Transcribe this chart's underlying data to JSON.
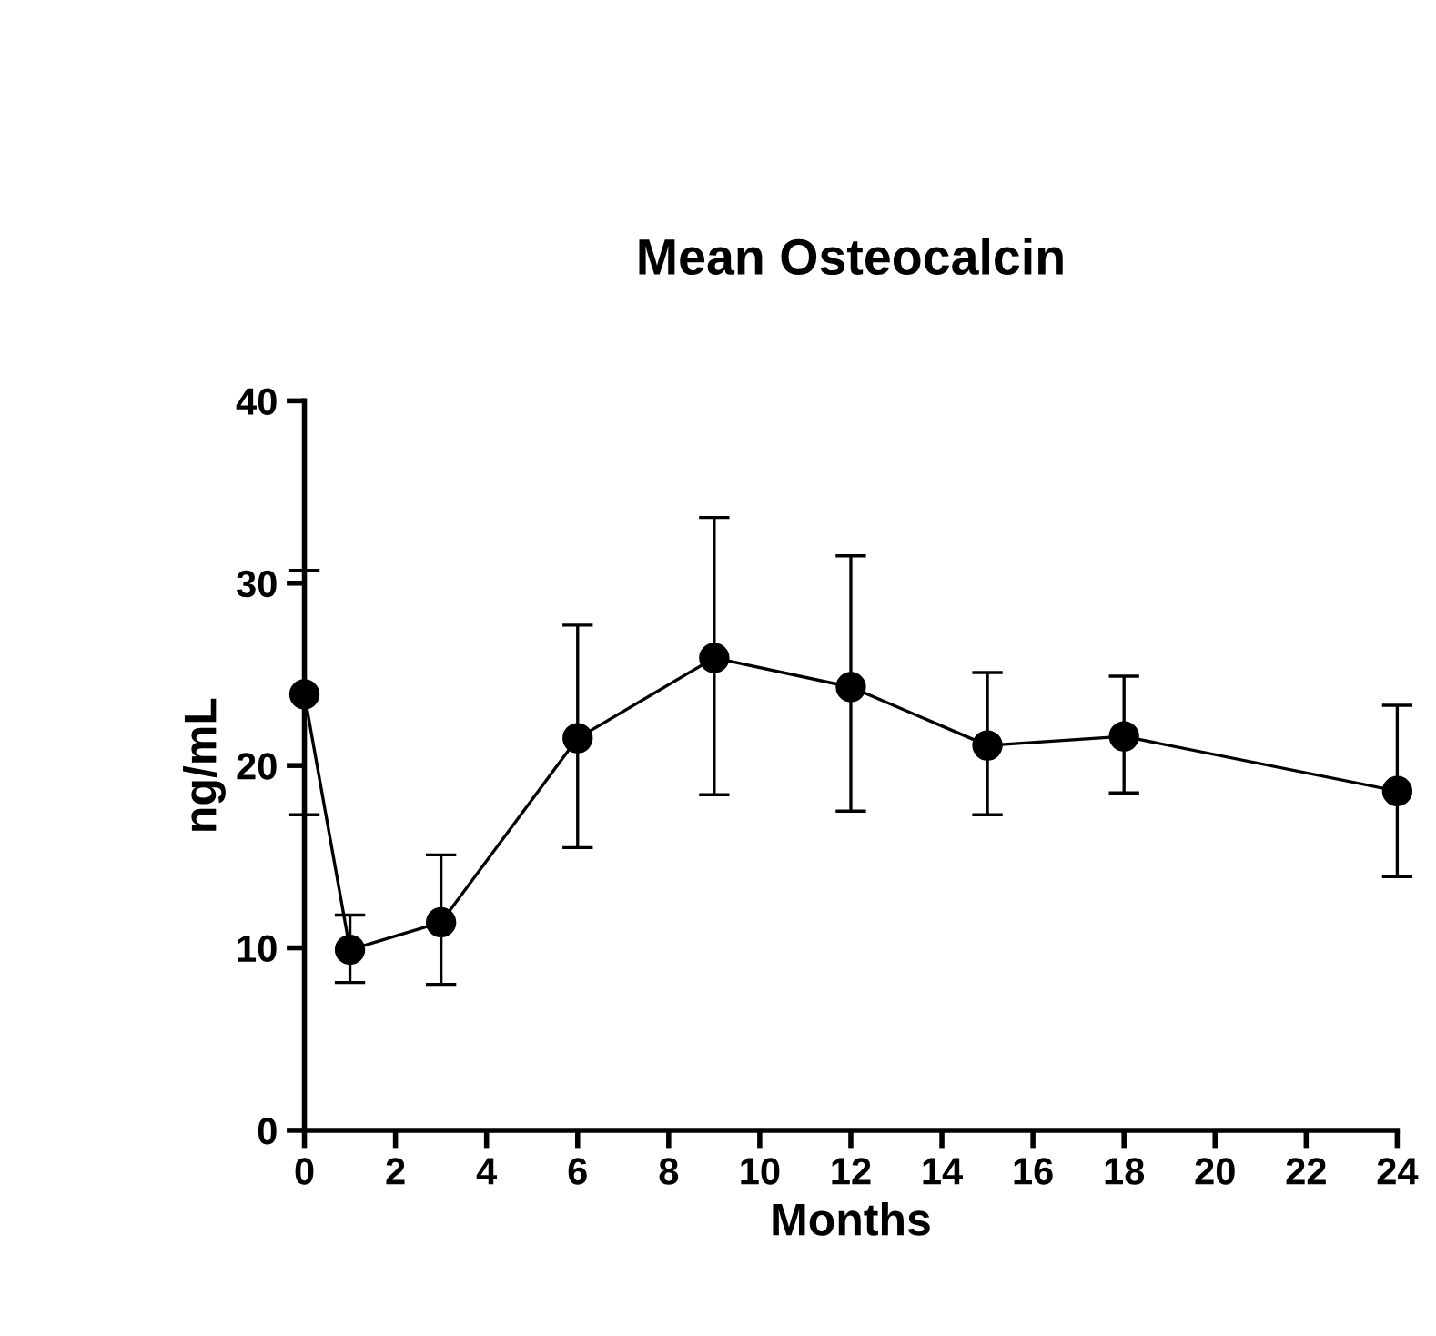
{
  "chart_data": {
    "type": "line",
    "title": "Mean Osteocalcin",
    "xlabel": "Months",
    "ylabel": "ng/mL",
    "x": [
      0,
      1,
      3,
      6,
      9,
      12,
      15,
      18,
      24
    ],
    "series": [
      {
        "color": "#000000",
        "values": [
          23.9,
          9.9,
          11.4,
          21.5,
          25.9,
          24.3,
          21.1,
          21.6,
          18.6
        ],
        "errors": [
          [
            17.3,
            30.7
          ],
          [
            8.1,
            11.8
          ],
          [
            8.0,
            15.1
          ],
          [
            15.5,
            27.7
          ],
          [
            18.4,
            33.6
          ],
          [
            17.5,
            31.5
          ],
          [
            17.3,
            25.1
          ],
          [
            18.5,
            24.9
          ],
          [
            13.9,
            23.3
          ]
        ]
      }
    ],
    "xlim": [
      0,
      24
    ],
    "xticks": [
      0,
      2,
      4,
      6,
      8,
      10,
      12,
      14,
      16,
      18,
      20,
      22,
      24
    ],
    "ylim": [
      0,
      40
    ],
    "yticks": [
      0,
      10,
      20,
      30,
      40
    ],
    "grid": false,
    "legend": false,
    "marker": "circle",
    "line_style": "solid"
  }
}
